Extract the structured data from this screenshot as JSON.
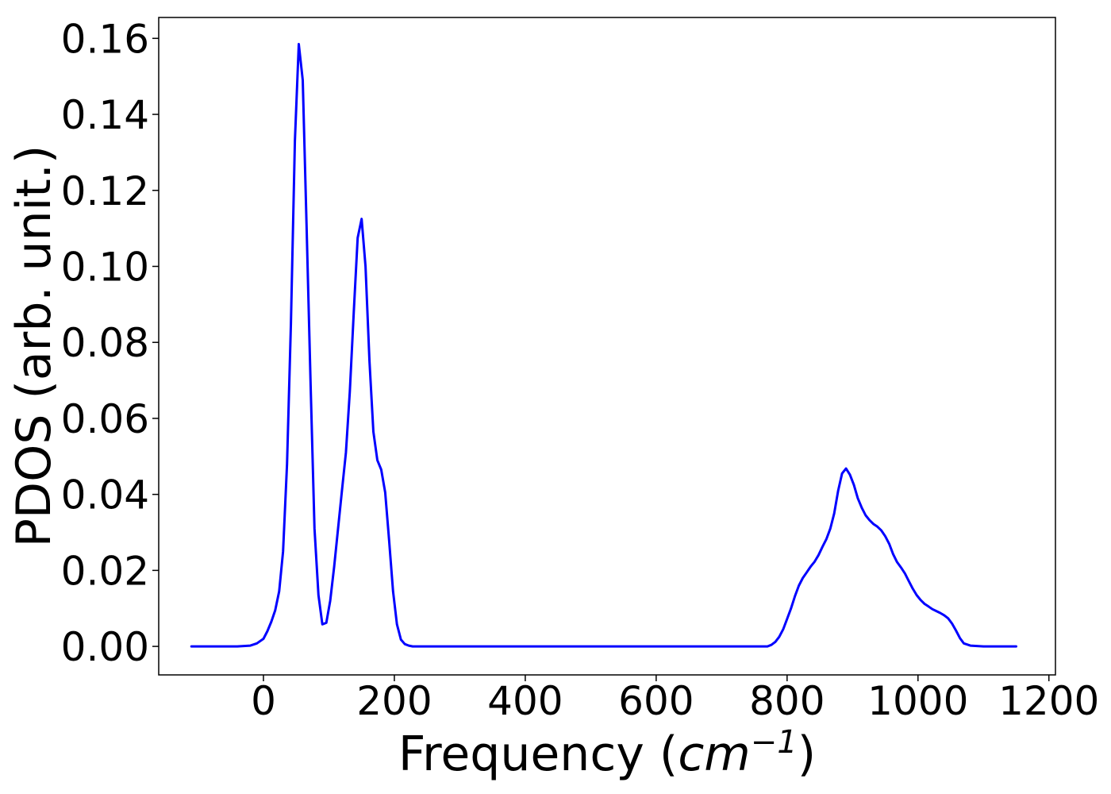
{
  "chart_data": {
    "type": "line",
    "title": "",
    "xlabel": {
      "prefix": "Frequency (",
      "unit_base": "cm",
      "unit_exponent": "−1",
      "suffix": ")"
    },
    "ylabel": "PDOS (arb. unit.)",
    "xlim": [
      -160,
      1210
    ],
    "ylim": [
      -0.0075,
      0.1655
    ],
    "xticks": [
      0,
      200,
      400,
      600,
      800,
      1000,
      1200
    ],
    "xtick_labels": [
      "0",
      "200",
      "400",
      "600",
      "800",
      "1000",
      "1200"
    ],
    "yticks": [
      0.0,
      0.02,
      0.04,
      0.06,
      0.08,
      0.1,
      0.12,
      0.14,
      0.16
    ],
    "ytick_labels": [
      "0.00",
      "0.02",
      "0.04",
      "0.06",
      "0.08",
      "0.10",
      "0.12",
      "0.14",
      "0.16"
    ],
    "grid": false,
    "legend": "none",
    "series": [
      {
        "color": "#0000ff",
        "x": [
          -110,
          -40,
          -20,
          -10,
          0,
          6,
          12,
          18,
          24,
          30,
          36,
          42,
          48,
          54,
          60,
          66,
          72,
          78,
          84,
          90,
          96,
          102,
          108,
          114,
          120,
          126,
          132,
          138,
          144,
          150,
          156,
          162,
          168,
          174,
          180,
          186,
          192,
          198,
          204,
          210,
          216,
          222,
          228,
          234,
          240,
          250,
          300,
          400,
          500,
          600,
          700,
          760,
          770,
          776,
          782,
          788,
          794,
          800,
          806,
          812,
          818,
          824,
          830,
          836,
          842,
          848,
          854,
          860,
          866,
          872,
          878,
          884,
          890,
          896,
          902,
          908,
          914,
          920,
          926,
          932,
          938,
          944,
          950,
          956,
          962,
          968,
          974,
          980,
          986,
          992,
          998,
          1004,
          1010,
          1016,
          1022,
          1028,
          1034,
          1040,
          1046,
          1052,
          1058,
          1064,
          1070,
          1080,
          1100,
          1150
        ],
        "y": [
          0.0,
          0.0,
          0.0002,
          0.0008,
          0.002,
          0.004,
          0.0065,
          0.0095,
          0.0145,
          0.025,
          0.048,
          0.085,
          0.133,
          0.1585,
          0.149,
          0.11,
          0.069,
          0.031,
          0.0135,
          0.0058,
          0.0062,
          0.012,
          0.021,
          0.031,
          0.041,
          0.051,
          0.067,
          0.088,
          0.1075,
          0.1125,
          0.1,
          0.075,
          0.0565,
          0.049,
          0.0465,
          0.0405,
          0.028,
          0.0145,
          0.0058,
          0.0018,
          0.0006,
          0.0002,
          0.0,
          0.0,
          0.0,
          0.0,
          0.0,
          0.0,
          0.0,
          0.0,
          0.0,
          0.0,
          0.0,
          0.0004,
          0.0012,
          0.0025,
          0.0045,
          0.0072,
          0.01,
          0.0132,
          0.016,
          0.018,
          0.0195,
          0.021,
          0.0223,
          0.024,
          0.0262,
          0.0282,
          0.031,
          0.035,
          0.041,
          0.0455,
          0.0468,
          0.0452,
          0.0425,
          0.039,
          0.0365,
          0.0345,
          0.0332,
          0.0322,
          0.0315,
          0.0305,
          0.029,
          0.027,
          0.0243,
          0.0222,
          0.0208,
          0.0192,
          0.0172,
          0.0152,
          0.0135,
          0.0122,
          0.0112,
          0.0105,
          0.0098,
          0.0093,
          0.0088,
          0.0082,
          0.0074,
          0.006,
          0.0042,
          0.0022,
          0.0008,
          0.0002,
          0.0,
          0.0
        ]
      }
    ]
  }
}
